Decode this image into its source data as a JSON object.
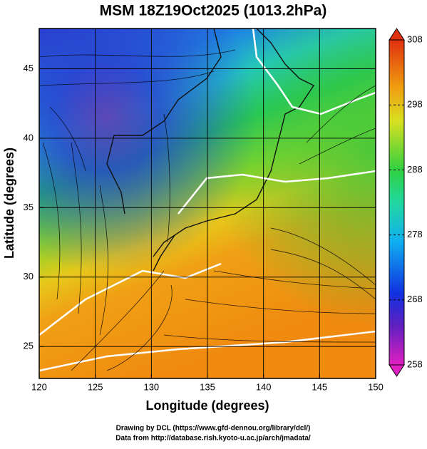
{
  "chart_data": {
    "type": "map",
    "title": "MSM 18Z19Oct2025 (1013.2hPa)",
    "xlabel": "Longitude (degrees)",
    "ylabel": "Latitude  (degrees)",
    "xlim": [
      120,
      150
    ],
    "ylim": [
      22.7,
      47.9
    ],
    "xticks": [
      120,
      125,
      130,
      135,
      140,
      145,
      150
    ],
    "yticks": [
      25,
      30,
      35,
      40,
      45
    ],
    "grid": true,
    "colorbar": {
      "lim": [
        258,
        308
      ],
      "ticks": [
        258,
        268,
        278,
        288,
        298,
        308
      ]
    },
    "credits": [
      "Drawing by DCL (https://www.gfd-dennou.org/library/dcl/)",
      "Data from http://database.rish.kyoto-u.ac.jp/arch/jmadata/"
    ]
  }
}
